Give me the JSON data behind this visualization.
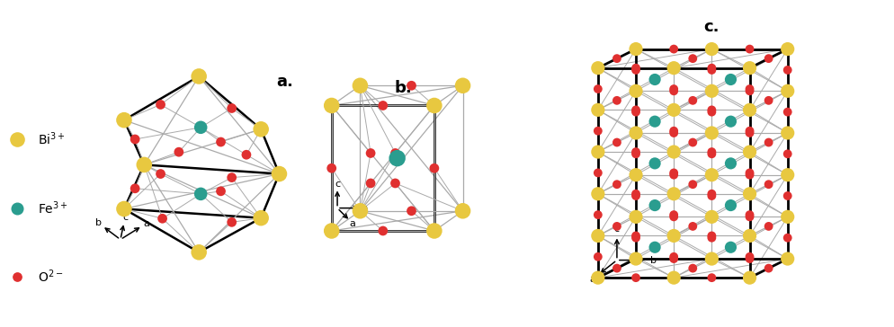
{
  "colors": {
    "Bi": "#E8C840",
    "Fe": "#2A9D8F",
    "O": "#E03030",
    "bond_black": "#000000",
    "bond_gray": "#AAAAAA"
  },
  "legend": {
    "Bi_label": "Bi$^{3+}$",
    "Fe_label": "Fe$^{3+}$",
    "O_label": "O$^{2-}$"
  },
  "labels": {
    "a_label": "a.",
    "b_label": "b.",
    "c_label": "c."
  },
  "sizes": {
    "Bi": 160,
    "Fe": 110,
    "O": 60,
    "Bi_c": 120,
    "Fe_c": 90,
    "O_c": 50
  }
}
